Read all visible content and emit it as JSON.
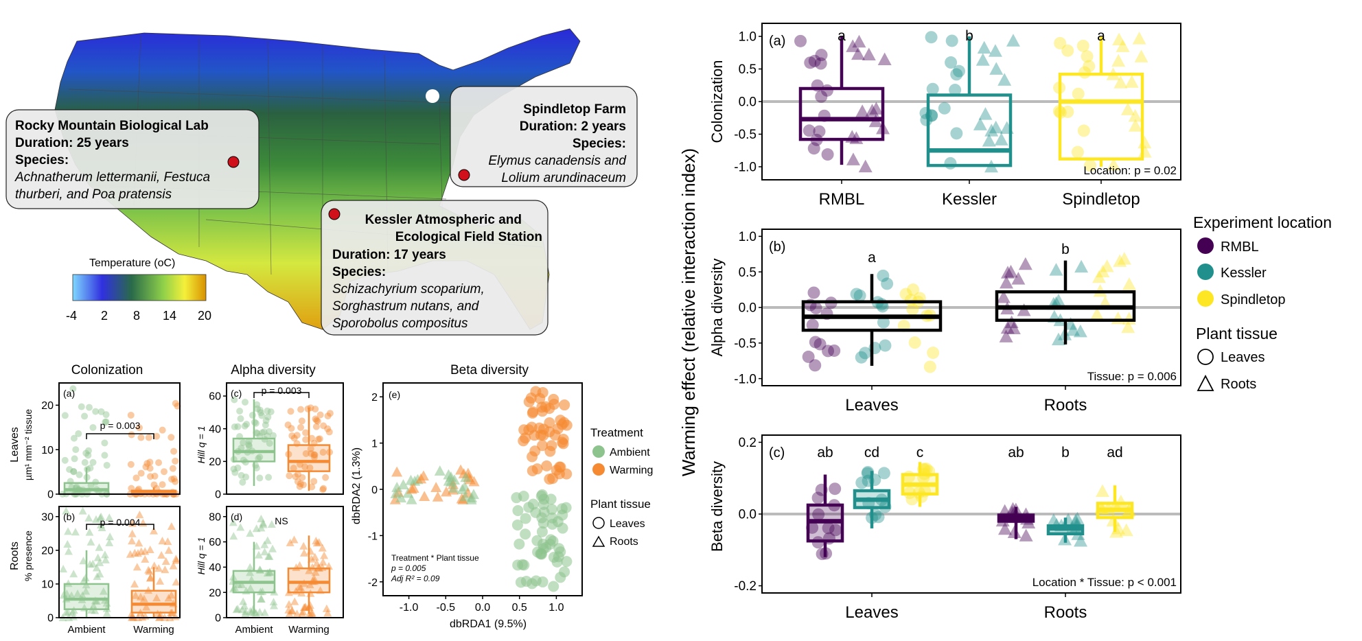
{
  "colors": {
    "rmbl": "#440154",
    "kessler": "#21908C",
    "spindletop": "#FDE725",
    "ambient": "#8DC38D",
    "warming": "#F58A32",
    "black": "#000000",
    "refline": "#BBBBBB"
  },
  "map": {
    "sites": [
      {
        "lines": [
          "Rocky Mountain Biological Lab",
          "Duration: 25 years",
          "Species:"
        ],
        "species": [
          "Achnatherum lettermanii, Festuca",
          "thurberi, and Poa pratensis"
        ]
      },
      {
        "lines": [
          "Spindletop Farm",
          "Duration: 2 years",
          "Species:"
        ],
        "species": [
          "Elymus canadensis and",
          "Lolium arundinaceum"
        ]
      },
      {
        "lines": [
          "Kessler Atmospheric and",
          "Ecological Field Station",
          "Duration: 17 years",
          "Species:"
        ],
        "species": [
          "Schizachyrium scoparium,",
          "Sorghastrum nutans, and",
          "Sporobolus compositus"
        ]
      }
    ],
    "legend": {
      "title": "Temperature (oC)",
      "ticks": [
        "-4",
        "2",
        "8",
        "14",
        "20"
      ]
    }
  },
  "left_panels": {
    "col_titles": [
      "Colonization",
      "Alpha diversity",
      "Beta diversity"
    ],
    "row_labels": {
      "leaves": "Leaves",
      "leaves_unit": "µm¹ mm⁻² tissue",
      "roots": "Roots",
      "roots_unit": "% presence"
    },
    "hill_label": "Hill q = 1",
    "treatments": [
      "Ambient",
      "Warming"
    ],
    "panel_tags": [
      "(a)",
      "(b)",
      "(c)",
      "(d)",
      "(e)"
    ],
    "stats": [
      "p = 0.003",
      "p = 0.004",
      "p = 0.003",
      "NS"
    ],
    "beta": {
      "xlabel": "dbRDA1 (9.5%)",
      "ylabel": "dbRDA2 (1.3%)",
      "note1": "Treatment * Plant tissue",
      "note2": "p = 0.005",
      "note3": "Adj R² = 0.09"
    },
    "legend": {
      "title": "Treatment",
      "items": [
        "Ambient",
        "Warming"
      ],
      "tissue_title": "Plant tissue",
      "tissue_items": [
        "Leaves",
        "Roots"
      ]
    }
  },
  "right_panels": {
    "ylabel_main": "Warming effect (relative interaction index)",
    "a": {
      "tag": "(a)",
      "ylabel": "Colonization",
      "cats": [
        "RMBL",
        "Kessler",
        "Spindletop"
      ],
      "letters": [
        "a",
        "b",
        "a"
      ],
      "stat": "Location: p = 0.02"
    },
    "b": {
      "tag": "(b)",
      "ylabel": "Alpha diversity",
      "cats": [
        "Leaves",
        "Roots"
      ],
      "letters": [
        "a",
        "b"
      ],
      "stat": "Tissue: p = 0.006"
    },
    "c": {
      "tag": "(c)",
      "ylabel": "Beta diversity",
      "cats": [
        "Leaves",
        "Roots"
      ],
      "letters": [
        "ab",
        "cd",
        "c",
        "ab",
        "b",
        "ad"
      ],
      "stat": "Location * Tissue: p < 0.001"
    },
    "legend": {
      "title": "Experiment location",
      "items": [
        "RMBL",
        "Kessler",
        "Spindletop"
      ],
      "tissue_title": "Plant tissue",
      "tissue_items": [
        "Leaves",
        "Roots"
      ]
    }
  },
  "chart_data": [
    {
      "type": "boxplot",
      "panel": "(a) Colonization Leaves",
      "categories": [
        "Ambient",
        "Warming"
      ],
      "ylim": [
        0,
        25
      ],
      "yticks": [
        0,
        10,
        20
      ],
      "boxes": [
        {
          "q1": 0,
          "med": 1,
          "q3": 2.5,
          "lo": 0,
          "hi": 6
        },
        {
          "q1": 0,
          "med": 0.3,
          "q3": 0.8,
          "lo": 0,
          "hi": 1.5
        }
      ]
    },
    {
      "type": "boxplot",
      "panel": "(b) Colonization Roots",
      "categories": [
        "Ambient",
        "Warming"
      ],
      "ylim": [
        0,
        33
      ],
      "yticks": [
        0,
        10,
        20,
        30
      ],
      "boxes": [
        {
          "q1": 2.5,
          "med": 5.5,
          "q3": 10,
          "lo": 0,
          "hi": 20
        },
        {
          "q1": 1.5,
          "med": 4,
          "q3": 8,
          "lo": 0,
          "hi": 15
        }
      ]
    },
    {
      "type": "boxplot",
      "panel": "(c) Alpha Leaves",
      "categories": [
        "Ambient",
        "Warming"
      ],
      "ylim": [
        0,
        68
      ],
      "yticks": [
        0,
        20,
        40,
        60
      ],
      "boxes": [
        {
          "q1": 20,
          "med": 26,
          "q3": 34,
          "lo": 5,
          "hi": 58
        },
        {
          "q1": 14,
          "med": 20,
          "q3": 30,
          "lo": 2,
          "hi": 53
        }
      ]
    },
    {
      "type": "boxplot",
      "panel": "(d) Alpha Roots",
      "categories": [
        "Ambient",
        "Warming"
      ],
      "ylim": [
        0,
        88
      ],
      "yticks": [
        0,
        20,
        40,
        60,
        80
      ],
      "boxes": [
        {
          "q1": 20,
          "med": 28,
          "q3": 37,
          "lo": 3,
          "hi": 60
        },
        {
          "q1": 20,
          "med": 28,
          "q3": 39,
          "lo": 3,
          "hi": 65
        }
      ]
    },
    {
      "type": "scatter",
      "panel": "(e) Beta diversity",
      "xlabel": "dbRDA1 (9.5%)",
      "ylabel": "dbRDA2 (1.3%)",
      "xlim": [
        -1.35,
        1.35
      ],
      "ylim": [
        -2.3,
        2.3
      ],
      "xticks": [
        -1.0,
        -0.5,
        0.0,
        0.5,
        1.0
      ],
      "yticks": [
        -2,
        -1,
        0,
        1,
        2
      ]
    },
    {
      "type": "boxplot",
      "panel": "Right (a) Colonization",
      "categories": [
        "RMBL",
        "Kessler",
        "Spindletop"
      ],
      "ylim": [
        -1.2,
        1.2
      ],
      "yticks": [
        -1.0,
        -0.5,
        0.0,
        0.5,
        1.0
      ],
      "boxes": [
        {
          "q1": -0.58,
          "med": -0.27,
          "q3": 0.2,
          "lo": -0.97,
          "hi": 1.0
        },
        {
          "q1": -0.98,
          "med": -0.75,
          "q3": 0.1,
          "lo": -1.0,
          "hi": 1.0
        },
        {
          "q1": -0.88,
          "med": 0.0,
          "q3": 0.42,
          "lo": -1.0,
          "hi": 1.0
        }
      ]
    },
    {
      "type": "boxplot",
      "panel": "Right (b) Alpha diversity",
      "categories": [
        "Leaves",
        "Roots"
      ],
      "ylim": [
        -1.1,
        1.1
      ],
      "yticks": [
        -1.0,
        -0.5,
        0.0,
        0.5,
        1.0
      ],
      "boxes": [
        {
          "q1": -0.32,
          "med": -0.13,
          "q3": 0.08,
          "lo": -0.82,
          "hi": 0.47
        },
        {
          "q1": -0.18,
          "med": 0.0,
          "q3": 0.22,
          "lo": -0.52,
          "hi": 0.66
        }
      ]
    },
    {
      "type": "boxplot",
      "panel": "Right (c) Beta diversity",
      "categories": [
        "Leaves",
        "Roots"
      ],
      "ylim": [
        -0.22,
        0.22
      ],
      "yticks": [
        -0.2,
        0.0,
        0.2
      ],
      "boxes": [
        {
          "q1": -0.075,
          "med": -0.02,
          "q3": 0.025,
          "lo": -0.12,
          "hi": 0.11
        },
        {
          "q1": 0.018,
          "med": 0.04,
          "q3": 0.065,
          "lo": -0.04,
          "hi": 0.12
        },
        {
          "q1": 0.056,
          "med": 0.082,
          "q3": 0.11,
          "lo": 0.02,
          "hi": 0.145
        },
        {
          "q1": -0.02,
          "med": -0.01,
          "q3": -0.003,
          "lo": -0.07,
          "hi": 0.02
        },
        {
          "q1": -0.055,
          "med": -0.04,
          "q3": -0.033,
          "lo": -0.08,
          "hi": -0.01
        },
        {
          "q1": -0.01,
          "med": 0.012,
          "q3": 0.03,
          "lo": -0.05,
          "hi": 0.08
        }
      ]
    }
  ]
}
